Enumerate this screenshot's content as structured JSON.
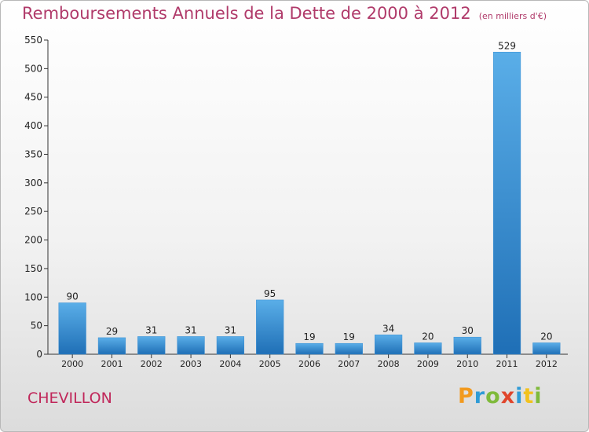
{
  "title": "Remboursements Annuels de la Dette de 2000 à 2012",
  "unit": "(en milliers d'€)",
  "commune": "CHEVILLON",
  "logo": {
    "letters": [
      "P",
      "r",
      "o",
      "x",
      "i",
      "t",
      "i"
    ],
    "colors": [
      "#f29a1e",
      "#2f9bd6",
      "#7fba3b",
      "#e0452b",
      "#2f9bd6",
      "#f2c21e",
      "#7fba3b"
    ]
  },
  "colors": {
    "bar_top": "#5aaee8",
    "bar_bottom": "#1f6fb6",
    "title": "#b03a6a",
    "commune": "#c0275a"
  },
  "chart_data": {
    "type": "bar",
    "title": "Remboursements Annuels de la Dette de 2000 à 2012",
    "subtitle": "(en milliers d'€)",
    "xlabel": "",
    "ylabel": "",
    "categories": [
      "2000",
      "2001",
      "2002",
      "2003",
      "2004",
      "2005",
      "2006",
      "2007",
      "2008",
      "2009",
      "2010",
      "2011",
      "2012"
    ],
    "values": [
      90,
      29,
      31,
      31,
      31,
      95,
      19,
      19,
      34,
      20,
      30,
      529,
      20
    ],
    "ylim": [
      0,
      550
    ],
    "yticks": [
      0,
      50,
      100,
      150,
      200,
      250,
      300,
      350,
      400,
      450,
      500,
      550
    ],
    "grid": false,
    "legend": "none"
  }
}
